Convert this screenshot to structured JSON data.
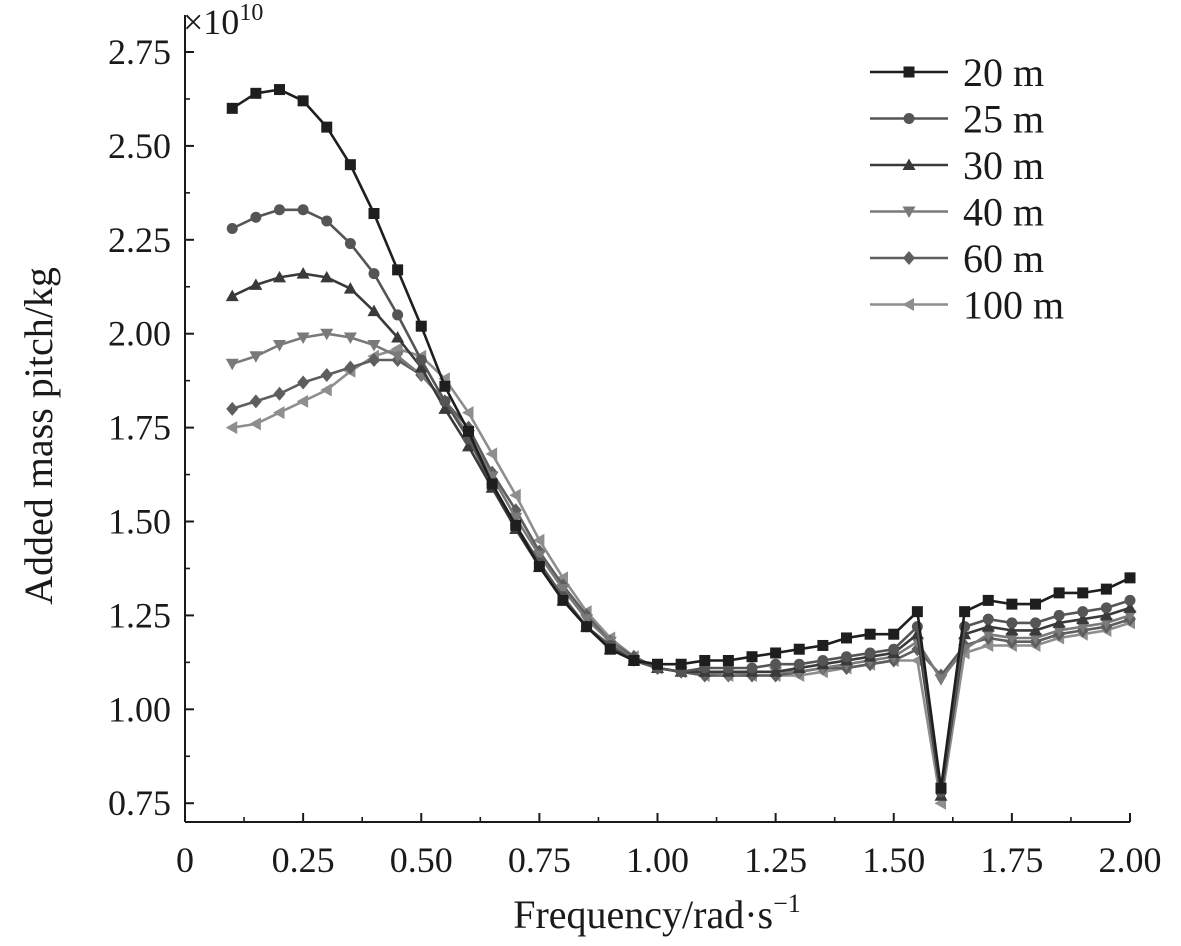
{
  "chart_data": {
    "type": "line",
    "title": "",
    "xlabel": "Frequency/rad·s",
    "xlabel_exponent": "−1",
    "ylabel": "Added mass pitch/kg",
    "y_multiplier": "×10",
    "y_multiplier_exponent": "10",
    "xlim": [
      0,
      2.0
    ],
    "ylim": [
      0.7,
      2.75
    ],
    "x_ticks": [
      0,
      0.25,
      0.5,
      0.75,
      1.0,
      1.25,
      1.5,
      1.75,
      2.0
    ],
    "x_tick_labels": [
      "0",
      "0.25",
      "0.50",
      "0.75",
      "1.00",
      "1.25",
      "1.50",
      "1.75",
      "2.00"
    ],
    "y_ticks": [
      0.75,
      1.0,
      1.25,
      1.5,
      1.75,
      2.0,
      2.25,
      2.5,
      2.75
    ],
    "y_tick_labels": [
      "0.75",
      "1.00",
      "1.25",
      "1.50",
      "1.75",
      "2.00",
      "2.25",
      "2.50",
      "2.75"
    ],
    "grid": false,
    "legend_position": "top-right",
    "x": [
      0.1,
      0.15,
      0.2,
      0.25,
      0.3,
      0.35,
      0.4,
      0.45,
      0.5,
      0.55,
      0.6,
      0.65,
      0.7,
      0.75,
      0.8,
      0.85,
      0.9,
      0.95,
      1.0,
      1.05,
      1.1,
      1.15,
      1.2,
      1.25,
      1.3,
      1.35,
      1.4,
      1.45,
      1.5,
      1.55,
      1.6,
      1.65,
      1.7,
      1.75,
      1.8,
      1.85,
      1.9,
      1.95,
      2.0
    ],
    "series": [
      {
        "name": "20 m",
        "marker": "square",
        "color": "#1e1e1e",
        "values": [
          2.6,
          2.64,
          2.65,
          2.62,
          2.55,
          2.45,
          2.32,
          2.17,
          2.02,
          1.86,
          1.74,
          1.6,
          1.49,
          1.38,
          1.29,
          1.22,
          1.16,
          1.13,
          1.12,
          1.12,
          1.13,
          1.13,
          1.14,
          1.15,
          1.16,
          1.17,
          1.19,
          1.2,
          1.2,
          1.26,
          0.79,
          1.26,
          1.29,
          1.28,
          1.28,
          1.31,
          1.31,
          1.32,
          1.35
        ]
      },
      {
        "name": "25 m",
        "marker": "circle",
        "color": "#555555",
        "values": [
          2.28,
          2.31,
          2.33,
          2.33,
          2.3,
          2.24,
          2.16,
          2.05,
          1.93,
          1.82,
          1.72,
          1.6,
          1.49,
          1.39,
          1.3,
          1.22,
          1.17,
          1.13,
          1.11,
          1.1,
          1.11,
          1.11,
          1.11,
          1.12,
          1.12,
          1.13,
          1.14,
          1.15,
          1.16,
          1.22,
          0.78,
          1.22,
          1.24,
          1.23,
          1.23,
          1.25,
          1.26,
          1.27,
          1.29
        ]
      },
      {
        "name": "30 m",
        "marker": "triangle-up",
        "color": "#3a3a3a",
        "values": [
          2.1,
          2.13,
          2.15,
          2.16,
          2.15,
          2.12,
          2.06,
          1.99,
          1.91,
          1.8,
          1.7,
          1.59,
          1.48,
          1.38,
          1.29,
          1.22,
          1.16,
          1.13,
          1.11,
          1.1,
          1.1,
          1.1,
          1.1,
          1.1,
          1.11,
          1.12,
          1.13,
          1.14,
          1.15,
          1.2,
          0.77,
          1.2,
          1.22,
          1.21,
          1.21,
          1.23,
          1.24,
          1.25,
          1.27
        ]
      },
      {
        "name": "40 m",
        "marker": "triangle-down",
        "color": "#7a7a7a",
        "values": [
          1.92,
          1.94,
          1.97,
          1.99,
          2.0,
          1.99,
          1.97,
          1.94,
          1.89,
          1.82,
          1.73,
          1.62,
          1.51,
          1.41,
          1.32,
          1.24,
          1.18,
          1.13,
          1.11,
          1.1,
          1.1,
          1.09,
          1.1,
          1.1,
          1.1,
          1.11,
          1.12,
          1.13,
          1.14,
          1.18,
          1.08,
          1.16,
          1.2,
          1.19,
          1.19,
          1.21,
          1.22,
          1.23,
          1.25
        ]
      },
      {
        "name": "60 m",
        "marker": "diamond",
        "color": "#5e5e5e",
        "values": [
          1.8,
          1.82,
          1.84,
          1.87,
          1.89,
          1.91,
          1.93,
          1.93,
          1.89,
          1.82,
          1.75,
          1.63,
          1.53,
          1.42,
          1.33,
          1.25,
          1.18,
          1.14,
          1.11,
          1.1,
          1.09,
          1.09,
          1.09,
          1.09,
          1.1,
          1.11,
          1.11,
          1.12,
          1.13,
          1.16,
          1.09,
          1.17,
          1.19,
          1.18,
          1.18,
          1.2,
          1.21,
          1.22,
          1.24
        ]
      },
      {
        "name": "100 m",
        "marker": "triangle-left",
        "color": "#8e8e8e",
        "values": [
          1.75,
          1.76,
          1.79,
          1.82,
          1.85,
          1.9,
          1.94,
          1.96,
          1.94,
          1.88,
          1.79,
          1.68,
          1.57,
          1.45,
          1.35,
          1.26,
          1.19,
          1.14,
          1.11,
          1.1,
          1.09,
          1.09,
          1.09,
          1.09,
          1.09,
          1.1,
          1.11,
          1.12,
          1.13,
          1.13,
          0.75,
          1.15,
          1.17,
          1.17,
          1.17,
          1.19,
          1.2,
          1.21,
          1.23
        ]
      }
    ]
  }
}
